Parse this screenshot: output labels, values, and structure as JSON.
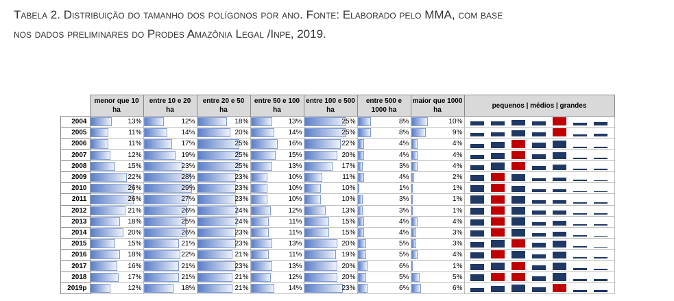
{
  "caption": [
    "Tabela 2. Distribuição do tamanho dos polígonos por ano. Fonte: Elaborado pelo MMA, com base",
    "nos dados preliminares do Prodes Amazônia Legal /Inpe, 2019."
  ],
  "table": {
    "headers": [
      "menor que 10 ha",
      "entre 10 e 20 ha",
      "entre 20 e 50 ha",
      "entre 50 e 100 ha",
      "entre 100 e 500 ha",
      "entre 500 e 1000 ha",
      "maior que 1000 ha"
    ],
    "trend_header": "pequenos |   médios   | grandes",
    "rows": [
      {
        "year": "2004",
        "values": [
          "13%",
          "12%",
          "18%",
          "13%",
          "25%",
          "8%",
          "10%"
        ]
      },
      {
        "year": "2005",
        "values": [
          "11%",
          "14%",
          "20%",
          "14%",
          "25%",
          "8%",
          "9%"
        ]
      },
      {
        "year": "2006",
        "values": [
          "11%",
          "17%",
          "25%",
          "16%",
          "22%",
          "4%",
          "4%"
        ]
      },
      {
        "year": "2007",
        "values": [
          "12%",
          "19%",
          "25%",
          "15%",
          "20%",
          "4%",
          "4%"
        ]
      },
      {
        "year": "2008",
        "values": [
          "15%",
          "23%",
          "25%",
          "13%",
          "17%",
          "3%",
          "4%"
        ]
      },
      {
        "year": "2009",
        "values": [
          "22%",
          "28%",
          "23%",
          "10%",
          "11%",
          "4%",
          "2%"
        ]
      },
      {
        "year": "2010",
        "values": [
          "26%",
          "29%",
          "23%",
          "10%",
          "10%",
          "1%",
          "1%"
        ]
      },
      {
        "year": "2011",
        "values": [
          "26%",
          "27%",
          "23%",
          "10%",
          "10%",
          "3%",
          "1%"
        ]
      },
      {
        "year": "2012",
        "values": [
          "21%",
          "26%",
          "24%",
          "12%",
          "13%",
          "3%",
          "1%"
        ]
      },
      {
        "year": "2013",
        "values": [
          "18%",
          "25%",
          "24%",
          "11%",
          "15%",
          "4%",
          "4%"
        ]
      },
      {
        "year": "2014",
        "values": [
          "20%",
          "26%",
          "23%",
          "11%",
          "15%",
          "4%",
          "3%"
        ]
      },
      {
        "year": "2015",
        "values": [
          "15%",
          "21%",
          "23%",
          "13%",
          "20%",
          "5%",
          "3%"
        ]
      },
      {
        "year": "2016",
        "values": [
          "18%",
          "22%",
          "21%",
          "11%",
          "19%",
          "5%",
          "4%"
        ]
      },
      {
        "year": "2017",
        "values": [
          "16%",
          "21%",
          "23%",
          "13%",
          "20%",
          "6%",
          "1%"
        ]
      },
      {
        "year": "2018",
        "values": [
          "17%",
          "21%",
          "21%",
          "12%",
          "20%",
          "5%",
          "5%"
        ]
      },
      {
        "year": "2019p",
        "values": [
          "12%",
          "18%",
          "21%",
          "14%",
          "23%",
          "6%",
          "6%"
        ]
      }
    ]
  }
}
